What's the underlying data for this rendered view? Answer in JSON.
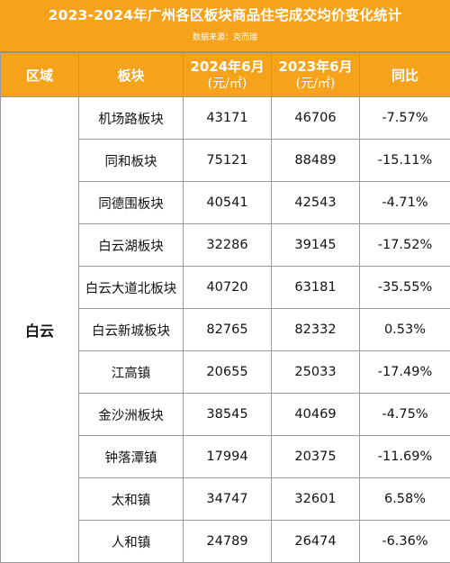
{
  "title": "2023-2024年广州各区板块商品住宅成交均价变化统计",
  "source": "数据来源：克而瑞",
  "header": {
    "region": "区域",
    "block": "板块",
    "price_2024": "2024年6月",
    "price_2024_unit": "(元/㎡)",
    "price_2023": "2023年6月",
    "price_2023_unit": "(元/㎡)",
    "change": "同比"
  },
  "region_name": "白云",
  "rows": [
    {
      "block": "机场路板块",
      "p2024": "43171",
      "p2023": "46706",
      "change": "-7.57%"
    },
    {
      "block": "同和板块",
      "p2024": "75121",
      "p2023": "88489",
      "change": "-15.11%"
    },
    {
      "block": "同德围板块",
      "p2024": "40541",
      "p2023": "42543",
      "change": "-4.71%"
    },
    {
      "block": "白云湖板块",
      "p2024": "32286",
      "p2023": "39145",
      "change": "-17.52%"
    },
    {
      "block": "白云大道北板块",
      "p2024": "40720",
      "p2023": "63181",
      "change": "-35.55%"
    },
    {
      "block": "白云新城板块",
      "p2024": "82765",
      "p2023": "82332",
      "change": "0.53%"
    },
    {
      "block": "江高镇",
      "p2024": "20655",
      "p2023": "25033",
      "change": "-17.49%"
    },
    {
      "block": "金沙洲板块",
      "p2024": "38545",
      "p2023": "40469",
      "change": "-4.75%"
    },
    {
      "block": "钟落潭镇",
      "p2024": "17994",
      "p2023": "20375",
      "change": "-11.69%"
    },
    {
      "block": "太和镇",
      "p2024": "34747",
      "p2023": "32601",
      "change": "6.58%"
    },
    {
      "block": "人和镇",
      "p2024": "24789",
      "p2023": "26474",
      "change": "-6.36%"
    }
  ],
  "colors": {
    "header_bg": "#f7a21b",
    "header_text": "#ffffff",
    "grid_line": "#9a9a9a"
  }
}
